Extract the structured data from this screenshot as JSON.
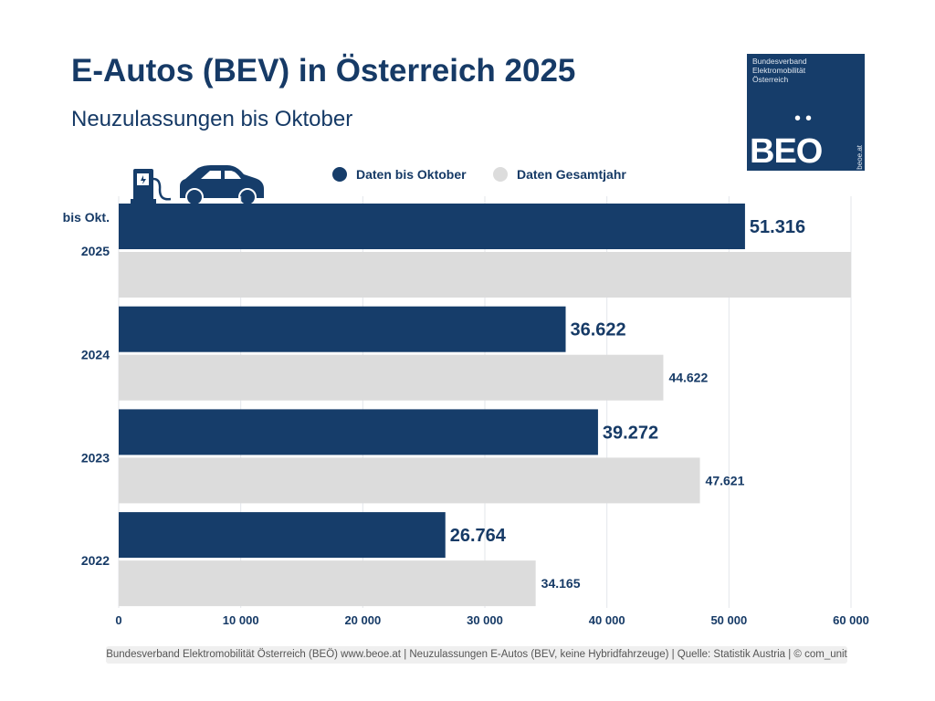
{
  "title": "E-Autos (BEV) in Österreich 2025",
  "subtitle": "Neuzulassungen bis Oktober",
  "logo": {
    "text": "Bundesverband Elektromobilität Österreich",
    "mark": "BEO",
    "url": "beoe.at",
    "dots": "••"
  },
  "colors": {
    "navy": "#163d6a",
    "gray": "#dcdcdc"
  },
  "footer": "Bundesverband Elektromobilität Österreich (BEÖ) www.beoe.at | Neuzulassungen E-Autos (BEV, keine Hybridfahrzeuge) | Quelle: Statistik Austria | © com_unit",
  "chart_data": {
    "type": "bar",
    "orientation": "horizontal",
    "categories": [
      "bis Okt.\n2025",
      "2024",
      "2023",
      "2022"
    ],
    "category_labels": [
      [
        "bis Okt.",
        "2025"
      ],
      [
        "2024"
      ],
      [
        "2023"
      ],
      [
        "2022"
      ]
    ],
    "series": [
      {
        "name": "Daten bis Oktober",
        "color": "#163d6a",
        "values": [
          51316,
          36622,
          39272,
          26764
        ],
        "labels": [
          "51.316",
          "36.622",
          "39.272",
          "26.764"
        ]
      },
      {
        "name": "Daten Gesamtjahr",
        "color": "#dcdcdc",
        "values": [
          60000,
          44622,
          47621,
          34165
        ],
        "labels": [
          "",
          "44.622",
          "47.621",
          "34.165"
        ]
      }
    ],
    "xlim": [
      0,
      60000
    ],
    "xticks": [
      0,
      10000,
      20000,
      30000,
      40000,
      50000,
      60000
    ],
    "xtick_labels": [
      "0",
      "10 000",
      "20 000",
      "30 000",
      "40 000",
      "50 000",
      "60 000"
    ],
    "grid": true,
    "legend": "top-center"
  }
}
